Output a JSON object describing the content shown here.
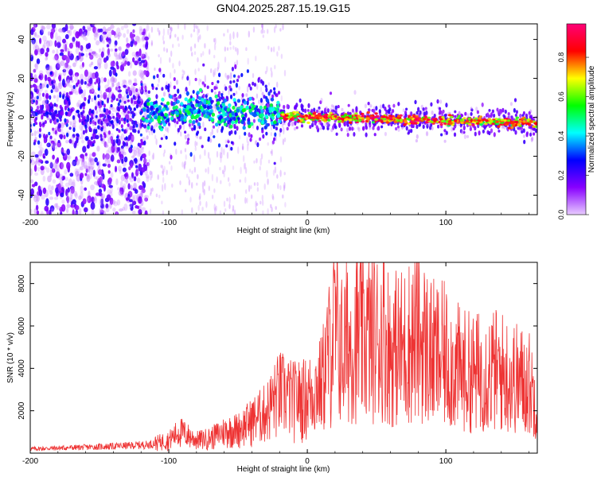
{
  "figure": {
    "title": "GN04.2025.287.15.19.G15"
  },
  "chart_data": [
    {
      "type": "heatmap",
      "xlabel": "Height of straight line (km)",
      "ylabel": "Frequency (Hz)",
      "xlim": [
        -200,
        166
      ],
      "ylim": [
        -50,
        48
      ],
      "xticks": [
        -200,
        -100,
        0,
        100
      ],
      "yticks": [
        -40,
        -20,
        0,
        20,
        40
      ],
      "colorbar": {
        "label": "Normalized spectral amplitude",
        "range": [
          0.0,
          0.97
        ],
        "ticks": [
          0.0,
          0.2,
          0.4,
          0.6,
          0.8
        ],
        "colors": [
          "#e8ccff",
          "#8800ff",
          "#0000ff",
          "#00ffff",
          "#00ff00",
          "#ffff00",
          "#ff0000",
          "#ff0077"
        ]
      },
      "description_points": [
        {
          "x": -200,
          "y": 0,
          "amp": 0.15
        },
        {
          "x": -100,
          "y": 2,
          "amp": 0.4
        },
        {
          "x": -50,
          "y": 5,
          "amp": 0.5
        },
        {
          "x": -25,
          "y": 1,
          "amp": 0.6
        },
        {
          "x": 0,
          "y": 0,
          "amp": 0.9
        },
        {
          "x": 50,
          "y": 0,
          "amp": 0.85
        },
        {
          "x": 100,
          "y": -1,
          "amp": 0.85
        },
        {
          "x": 166,
          "y": -3,
          "amp": 0.8
        }
      ]
    },
    {
      "type": "line",
      "xlabel": "Height of straight line (km)",
      "ylabel": "SNR (10 * v/v)",
      "xlim": [
        -200,
        166
      ],
      "ylim": [
        0,
        9000
      ],
      "xticks": [
        -200,
        -100,
        0,
        100
      ],
      "yticks": [
        2000,
        4000,
        6000,
        8000
      ],
      "series": [
        {
          "color": "#ee3333",
          "x": [
            -200,
            -175,
            -150,
            -130,
            -115,
            -100,
            -92,
            -80,
            -70,
            -60,
            -50,
            -40,
            -30,
            -20,
            -10,
            0,
            10,
            20,
            25,
            30,
            40,
            50,
            55,
            60,
            70,
            80,
            90,
            100,
            110,
            120,
            130,
            140,
            150,
            160,
            166
          ],
          "y": [
            200,
            250,
            300,
            350,
            400,
            600,
            1000,
            600,
            700,
            1000,
            1100,
            1500,
            1900,
            2800,
            2500,
            2600,
            3200,
            5800,
            4800,
            5300,
            5500,
            5400,
            5800,
            4800,
            5000,
            5600,
            4600,
            4500,
            3900,
            3700,
            3900,
            3800,
            3500,
            3300,
            2400
          ]
        }
      ]
    }
  ]
}
